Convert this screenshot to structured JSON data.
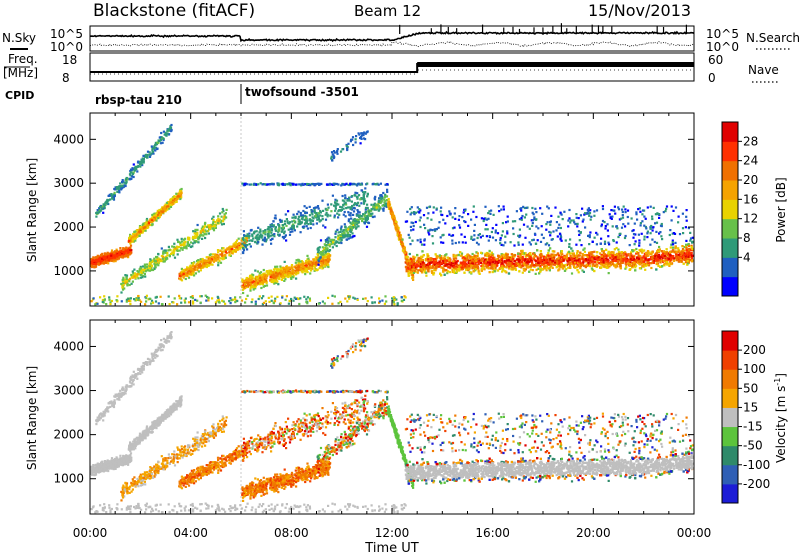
{
  "header": {
    "radar": "Blackstone (fitACF)",
    "beam": "Beam 12",
    "date": "15/Nov/2013"
  },
  "summary": {
    "nsky_label": "N.Sky",
    "nsearch_label": "N.Search",
    "freq_label_line1": "Freq.",
    "freq_label_line2": "[MHz]",
    "nave_label": "Nave",
    "cpid_label": "CPID",
    "noise_ticks": [
      "10^5",
      "10^0"
    ],
    "freq_ticks": [
      "18",
      "8"
    ],
    "nave_ticks": [
      "60",
      "0"
    ],
    "cpid_segments": [
      {
        "name": "rbsp-tau 210",
        "start_hour": 0
      },
      {
        "name": "twofsound -3501",
        "start_hour": 6
      }
    ],
    "freq_step_hour": 13
  },
  "chart_data": [
    {
      "type": "heatmap",
      "name": "power",
      "ylabel": "Slant Range [km]",
      "ylim": [
        200,
        4600
      ],
      "xlim": [
        0,
        24
      ],
      "yticks": [
        1000,
        2000,
        3000,
        4000
      ],
      "colorbar": {
        "label": "Power [dB]",
        "ticks": [
          "28",
          "24",
          "20",
          "16",
          "12",
          "8",
          "4"
        ],
        "colors": [
          "#0000ff",
          "#1f5fc0",
          "#2f9a78",
          "#67c04a",
          "#e8d200",
          "#f5a300",
          "#f07000",
          "#ff3000",
          "#e00000"
        ]
      }
    },
    {
      "type": "heatmap",
      "name": "velocity",
      "ylabel": "Slant Range [km]",
      "xlabel": "Time UT",
      "ylim": [
        200,
        4600
      ],
      "xlim": [
        0,
        24
      ],
      "yticks": [
        1000,
        2000,
        3000,
        4000
      ],
      "xticks": [
        "00:00",
        "04:00",
        "08:00",
        "12:00",
        "16:00",
        "20:00",
        "00:00"
      ],
      "colorbar": {
        "label_main": "Velocity [m s",
        "label_sup": "-1",
        "label_end": "]",
        "ticks": [
          "200",
          "100",
          "50",
          "15",
          "-15",
          "-50",
          "-100",
          "-200"
        ],
        "colors": [
          "#1c1cd6",
          "#2f5fb5",
          "#2f8a6a",
          "#5cc43c",
          "#bfbfbf",
          "#f5a500",
          "#f07a00",
          "#f04000",
          "#e00000"
        ]
      }
    }
  ]
}
